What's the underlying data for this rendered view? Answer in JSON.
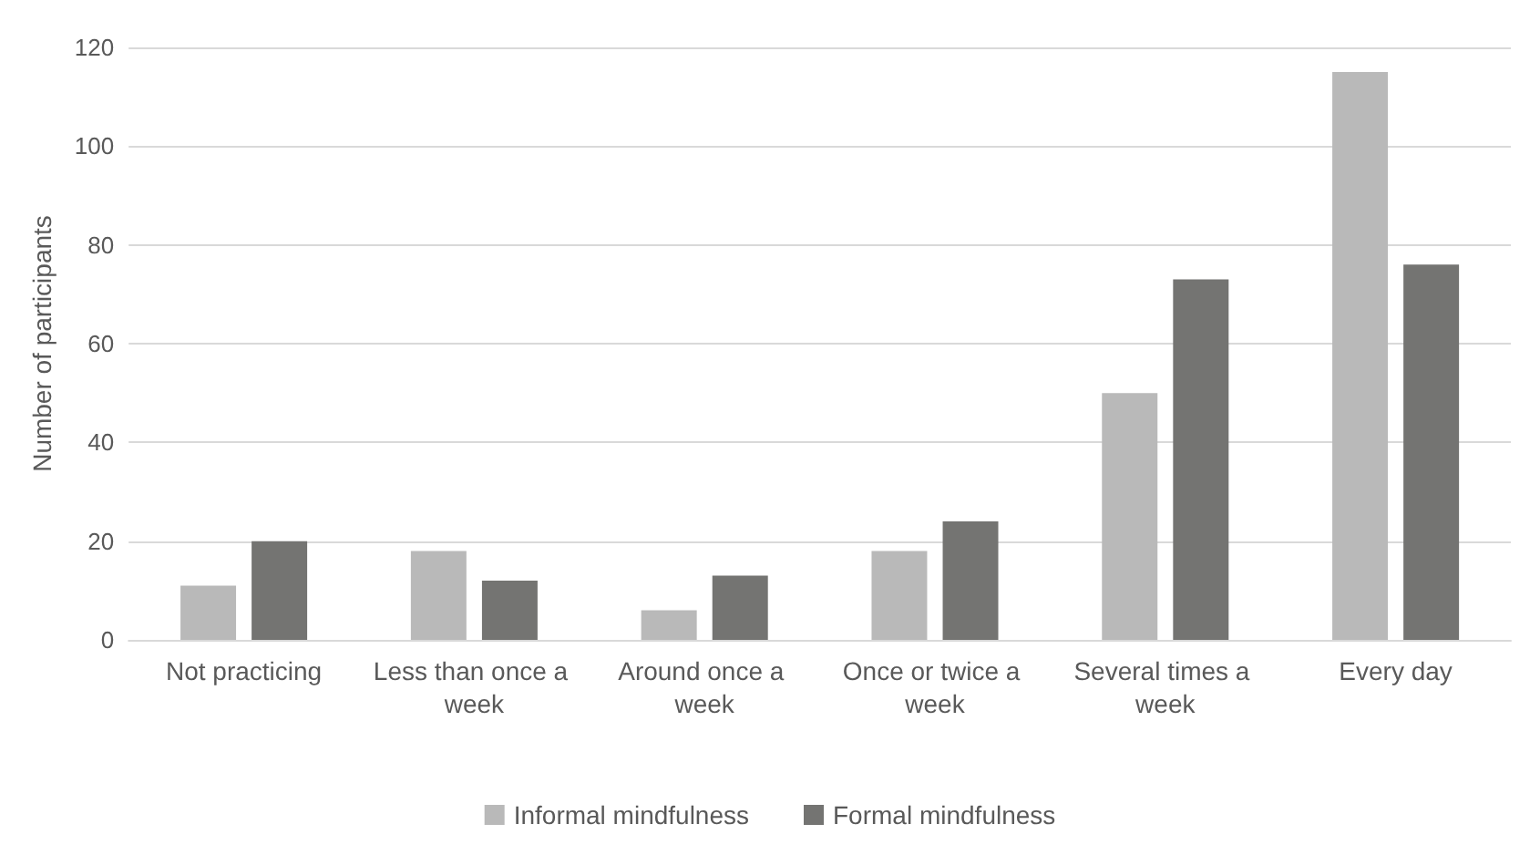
{
  "chart_data": {
    "type": "bar",
    "ylabel": "Number of participants",
    "categories": [
      "Not practicing",
      "Less than once a week",
      "Around once a week",
      "Once or twice a week",
      "Several times a week",
      "Every day"
    ],
    "series": [
      {
        "name": "Informal mindfulness",
        "color": "#b9b9b9",
        "values": [
          11,
          18,
          6,
          18,
          50,
          115
        ]
      },
      {
        "name": "Formal mindfulness",
        "color": "#747472",
        "values": [
          20,
          12,
          13,
          24,
          73,
          76
        ]
      }
    ],
    "ylim": [
      0,
      120
    ],
    "yticks": [
      0,
      20,
      40,
      60,
      80,
      100,
      120
    ],
    "grid": "y",
    "legend": "bottom"
  }
}
